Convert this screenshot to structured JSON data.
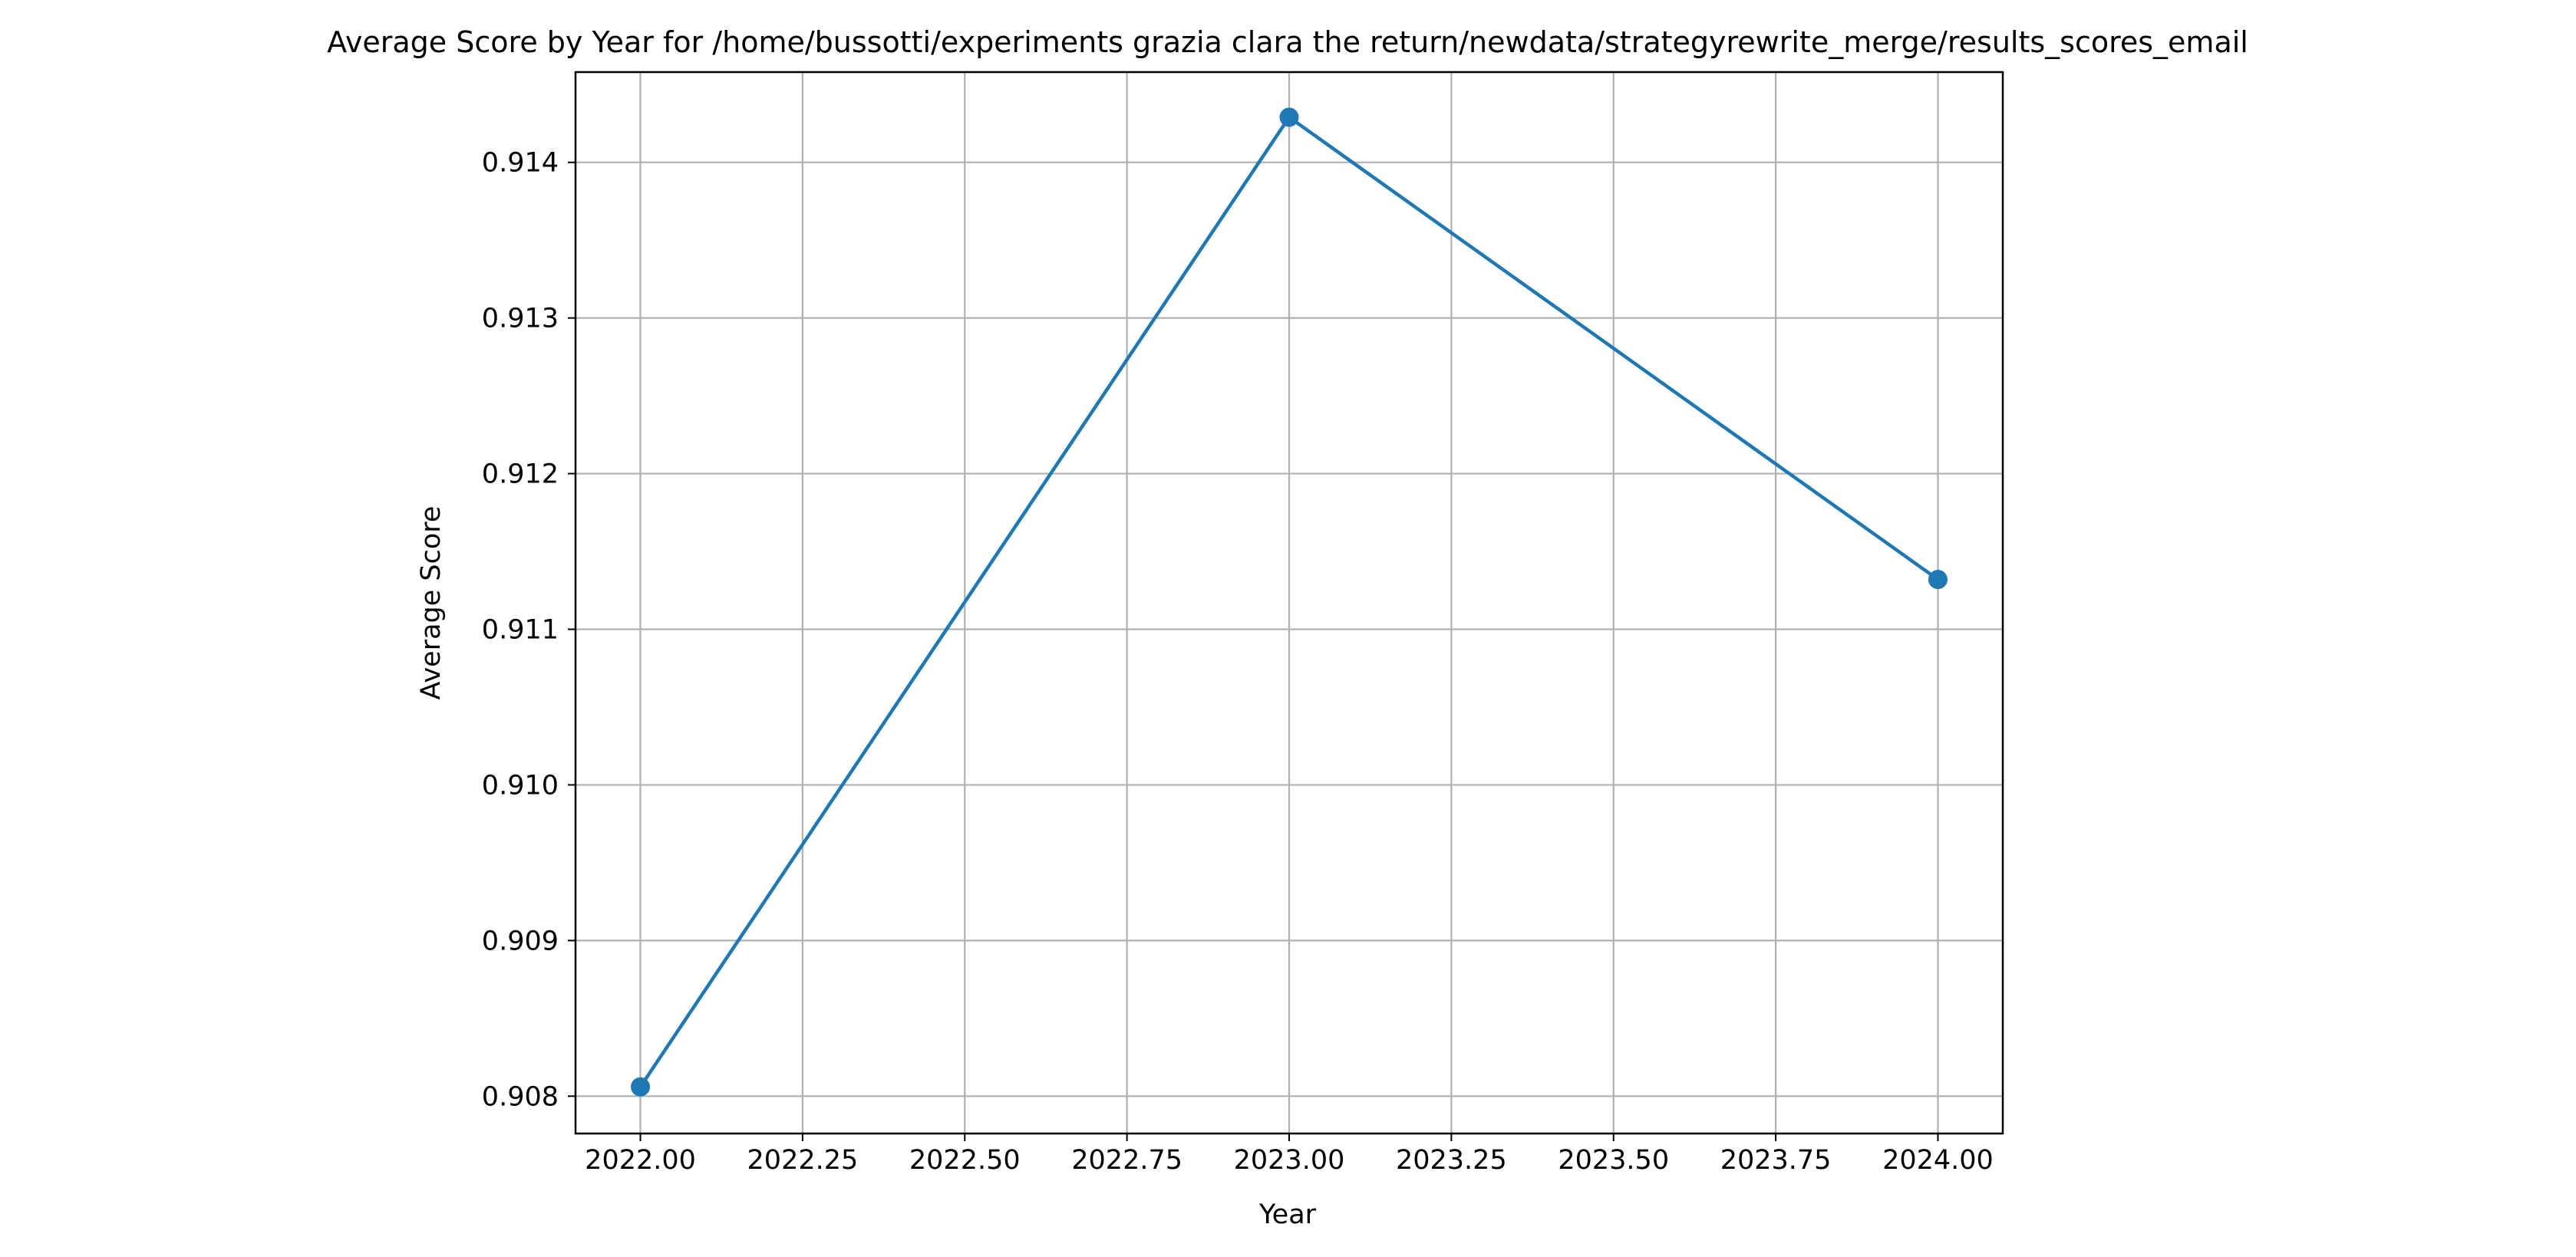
{
  "chart_data": {
    "type": "line",
    "title": "Average Score by Year for /home/bussotti/experiments grazia clara the return/newdata/strategyrewrite_merge/results_scores_email",
    "xlabel": "Year",
    "ylabel": "Average Score",
    "xlim": [
      2021.9,
      2024.1
    ],
    "ylim": [
      0.90776,
      0.91458
    ],
    "x_ticks": [
      2022.0,
      2022.25,
      2022.5,
      2022.75,
      2023.0,
      2023.25,
      2023.5,
      2023.75,
      2024.0
    ],
    "x_tick_labels": [
      "2022.00",
      "2022.25",
      "2022.50",
      "2022.75",
      "2023.00",
      "2023.25",
      "2023.50",
      "2023.75",
      "2024.00"
    ],
    "y_ticks": [
      0.908,
      0.909,
      0.91,
      0.911,
      0.912,
      0.913,
      0.914
    ],
    "y_tick_labels": [
      "0.908",
      "0.909",
      "0.910",
      "0.911",
      "0.912",
      "0.913",
      "0.914"
    ],
    "grid": true,
    "series": [
      {
        "x": [
          2022,
          2023,
          2024
        ],
        "y": [
          0.90806,
          0.91429,
          0.91132
        ],
        "color": "#1f77b4",
        "marker": "circle"
      }
    ]
  }
}
